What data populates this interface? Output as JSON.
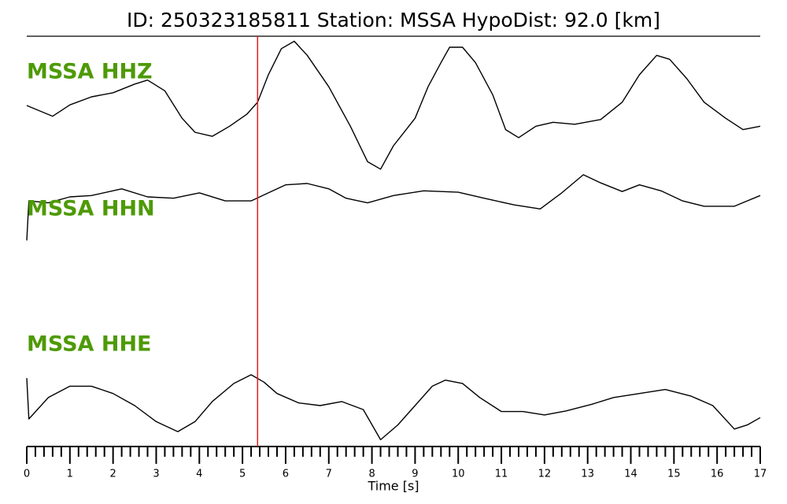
{
  "chart_data": {
    "type": "line",
    "title": "ID: 250323185811   Station: MSSA   HypoDist:    92.0 [km]",
    "xlabel": "Time [s]",
    "label_color": "#4e9a06",
    "ylim": [
      -1,
      1
    ],
    "xlim": [
      0,
      17
    ],
    "xticks": [
      0,
      1,
      2,
      3,
      4,
      5,
      6,
      7,
      8,
      9,
      10,
      11,
      12,
      13,
      14,
      15,
      16,
      17
    ],
    "xminorticks": [
      0.2,
      0.4,
      0.6,
      0.8,
      1.2,
      1.4,
      1.6,
      1.8,
      2.2,
      2.4,
      2.6,
      2.8,
      3.2,
      3.4,
      3.6,
      3.8,
      4.2,
      4.4,
      4.6,
      4.8,
      5.2,
      5.4,
      5.6,
      5.8,
      6.2,
      6.4,
      6.6,
      6.8,
      7.2,
      7.4,
      7.6,
      7.8,
      8.2,
      8.4,
      8.6,
      8.8,
      9.2,
      9.4,
      9.6,
      9.8,
      10.2,
      10.4,
      10.6,
      10.8,
      11.2,
      11.4,
      11.6,
      11.8,
      12.2,
      12.4,
      12.6,
      12.8,
      13.2,
      13.4,
      13.6,
      13.8,
      14.2,
      14.4,
      14.6,
      14.8,
      15.2,
      15.4,
      15.6,
      15.8,
      16.2,
      16.4,
      16.6,
      16.8
    ],
    "markers": [
      {
        "x": 5.35,
        "color": "#e31a1c"
      }
    ],
    "series": [
      {
        "name": "MSSA HHZ",
        "color": "#000000",
        "x": [
          0,
          0.6,
          1,
          1.5,
          2,
          2.5,
          2.8,
          3.2,
          3.6,
          3.9,
          4.3,
          4.7,
          5.1,
          5.35,
          5.6,
          5.9,
          6.2,
          6.5,
          7,
          7.5,
          7.9,
          8.2,
          8.5,
          9,
          9.3,
          9.6,
          9.8,
          10.1,
          10.4,
          10.8,
          11.1,
          11.4,
          11.8,
          12.2,
          12.7,
          13.3,
          13.8,
          14.2,
          14.6,
          14.9,
          15.3,
          15.7,
          16.2,
          16.6,
          17
        ],
        "values": [
          0,
          -0.16,
          0.01,
          0.13,
          0.19,
          0.32,
          0.38,
          0.22,
          -0.19,
          -0.4,
          -0.46,
          -0.31,
          -0.13,
          0.05,
          0.46,
          0.85,
          0.96,
          0.75,
          0.28,
          -0.31,
          -0.84,
          -0.95,
          -0.6,
          -0.19,
          0.28,
          0.64,
          0.87,
          0.87,
          0.64,
          0.16,
          -0.36,
          -0.48,
          -0.31,
          -0.25,
          -0.28,
          -0.21,
          0.05,
          0.46,
          0.75,
          0.69,
          0.4,
          0.05,
          -0.19,
          -0.36,
          -0.31
        ]
      },
      {
        "name": "MSSA HHN",
        "color": "#000000",
        "x": [
          0,
          0.05,
          0.5,
          1,
          1.5,
          2.2,
          2.8,
          3.4,
          4,
          4.6,
          5.2,
          5.6,
          6,
          6.5,
          7,
          7.4,
          7.9,
          8.5,
          9.2,
          10,
          10.6,
          11.3,
          11.9,
          12.4,
          12.9,
          13.3,
          13.8,
          14.2,
          14.7,
          15.2,
          15.7,
          16.4,
          17
        ],
        "values": [
          -0.65,
          -0.06,
          -0.09,
          0,
          0.02,
          0.12,
          0,
          -0.02,
          0.06,
          -0.06,
          -0.06,
          0.06,
          0.18,
          0.2,
          0.12,
          -0.02,
          -0.09,
          0.02,
          0.09,
          0.07,
          -0.02,
          -0.12,
          -0.18,
          0.06,
          0.33,
          0.21,
          0.08,
          0.18,
          0.09,
          -0.06,
          -0.14,
          -0.14,
          0.02
        ]
      },
      {
        "name": "MSSA HHE",
        "color": "#000000",
        "x": [
          0,
          0.05,
          0.5,
          1,
          1.5,
          2,
          2.5,
          3,
          3.5,
          3.9,
          4.3,
          4.8,
          5.2,
          5.5,
          5.8,
          6.3,
          6.8,
          7.3,
          7.8,
          8.2,
          8.6,
          9,
          9.4,
          9.7,
          10.1,
          10.5,
          11,
          11.5,
          12,
          12.5,
          13.1,
          13.6,
          14.2,
          14.8,
          15.4,
          15.9,
          16.4,
          16.7,
          17
        ],
        "values": [
          0.41,
          -0.2,
          0.12,
          0.29,
          0.29,
          0.18,
          0,
          -0.24,
          -0.39,
          -0.24,
          0.06,
          0.33,
          0.46,
          0.35,
          0.18,
          0.04,
          0,
          0.06,
          -0.06,
          -0.51,
          -0.29,
          0,
          0.29,
          0.38,
          0.33,
          0.12,
          -0.09,
          -0.09,
          -0.14,
          -0.08,
          0.02,
          0.12,
          0.18,
          0.24,
          0.14,
          0,
          -0.35,
          -0.29,
          -0.18
        ]
      }
    ]
  }
}
